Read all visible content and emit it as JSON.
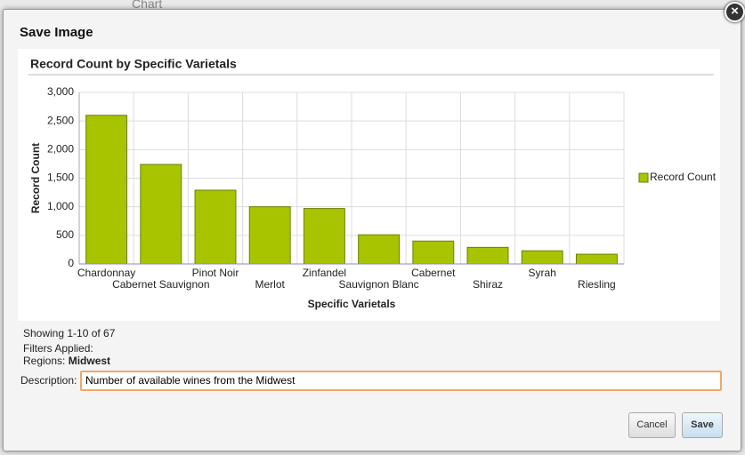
{
  "background": {
    "title": "Chart"
  },
  "dialog": {
    "title": "Save Image",
    "close": "×"
  },
  "chart_data": {
    "type": "bar",
    "title": "Record Count by Specific Varietals",
    "x_label": "Specific Varietals",
    "y_label": "Record Count",
    "categories": [
      "Chardonnay",
      "Cabernet Sauvignon",
      "Pinot Noir",
      "Merlot",
      "Zinfandel",
      "Sauvignon Blanc",
      "Cabernet",
      "Shiraz",
      "Syrah",
      "Riesling"
    ],
    "series": [
      {
        "name": "Record Count",
        "color": "#a8c400",
        "values": [
          2600,
          1740,
          1290,
          1000,
          970,
          510,
          400,
          290,
          230,
          170
        ]
      }
    ],
    "ylim": [
      0,
      3000
    ],
    "yticks": [
      0,
      500,
      {
        "value": 1000,
        "label": "1,000"
      },
      {
        "value": 1500,
        "label": "1,500"
      },
      {
        "value": 2000,
        "label": "2,000"
      },
      {
        "value": 2500,
        "label": "2,500"
      },
      {
        "value": 3000,
        "label": "3,000"
      }
    ],
    "grid": true,
    "legend": "right"
  },
  "info": {
    "showing": "Showing 1-10 of 67",
    "filters_heading": "Filters Applied:",
    "filter_label": "Regions:",
    "filter_value": "Midwest"
  },
  "description": {
    "label": "Description:",
    "value": "Number of available wines from the Midwest"
  },
  "buttons": {
    "cancel": "Cancel",
    "save": "Save"
  }
}
